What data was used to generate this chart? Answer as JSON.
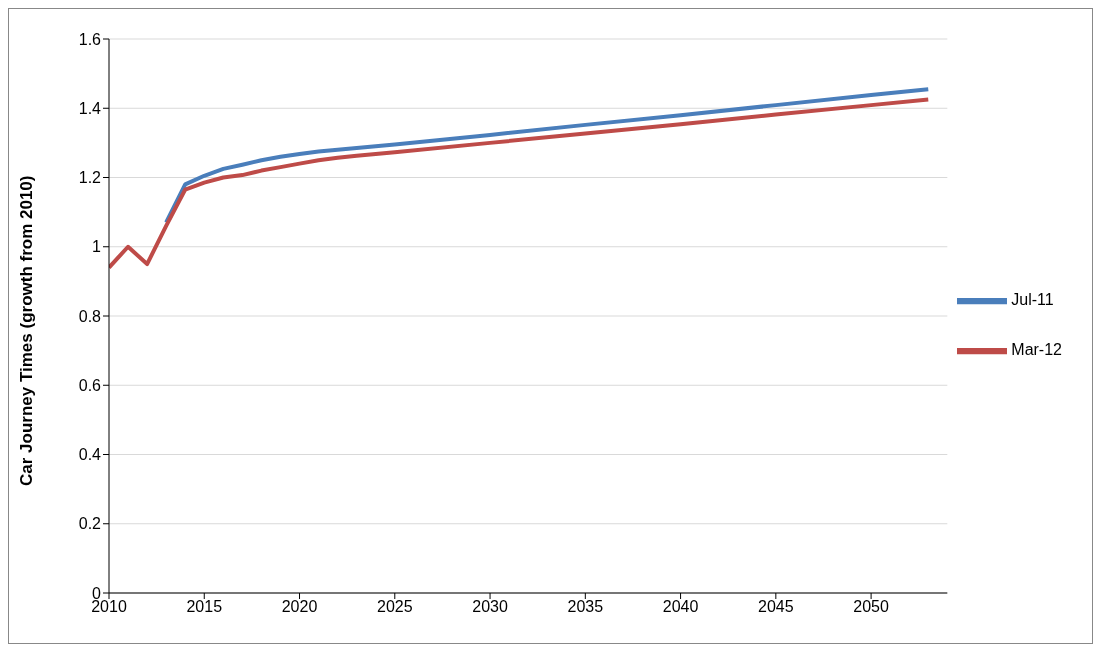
{
  "chart_data": {
    "type": "line",
    "ylabel": "Car Journey Times (growth from 2010)",
    "x": [
      2010,
      2011,
      2012,
      2013,
      2014,
      2015,
      2016,
      2017,
      2018,
      2019,
      2020,
      2021,
      2022,
      2023,
      2024,
      2025,
      2030,
      2035,
      2040,
      2045,
      2050,
      2053
    ],
    "series": [
      {
        "name": "Jul-11",
        "color": "#4a7ebb",
        "values": [
          null,
          null,
          null,
          1.07,
          1.18,
          1.205,
          1.225,
          1.237,
          1.25,
          1.26,
          1.268,
          1.275,
          1.28,
          1.285,
          1.29,
          1.295,
          1.323,
          1.352,
          1.38,
          1.409,
          1.438,
          1.455
        ]
      },
      {
        "name": "Mar-12",
        "color": "#be4b48",
        "values": [
          0.94,
          1.0,
          0.95,
          1.06,
          1.165,
          1.185,
          1.2,
          1.207,
          1.22,
          1.23,
          1.24,
          1.25,
          1.257,
          1.263,
          1.268,
          1.273,
          1.3,
          1.327,
          1.354,
          1.382,
          1.409,
          1.425
        ]
      }
    ],
    "xlim": [
      2010,
      2054
    ],
    "xticks": [
      2010,
      2015,
      2020,
      2025,
      2030,
      2035,
      2040,
      2045,
      2050
    ],
    "ylim": [
      0,
      1.6
    ],
    "yticks": [
      0,
      0.2,
      0.4,
      0.6,
      0.8,
      1,
      1.2,
      1.4,
      1.6
    ],
    "grid": "y",
    "legend": "right",
    "marker": "none",
    "line_style": "solid"
  }
}
